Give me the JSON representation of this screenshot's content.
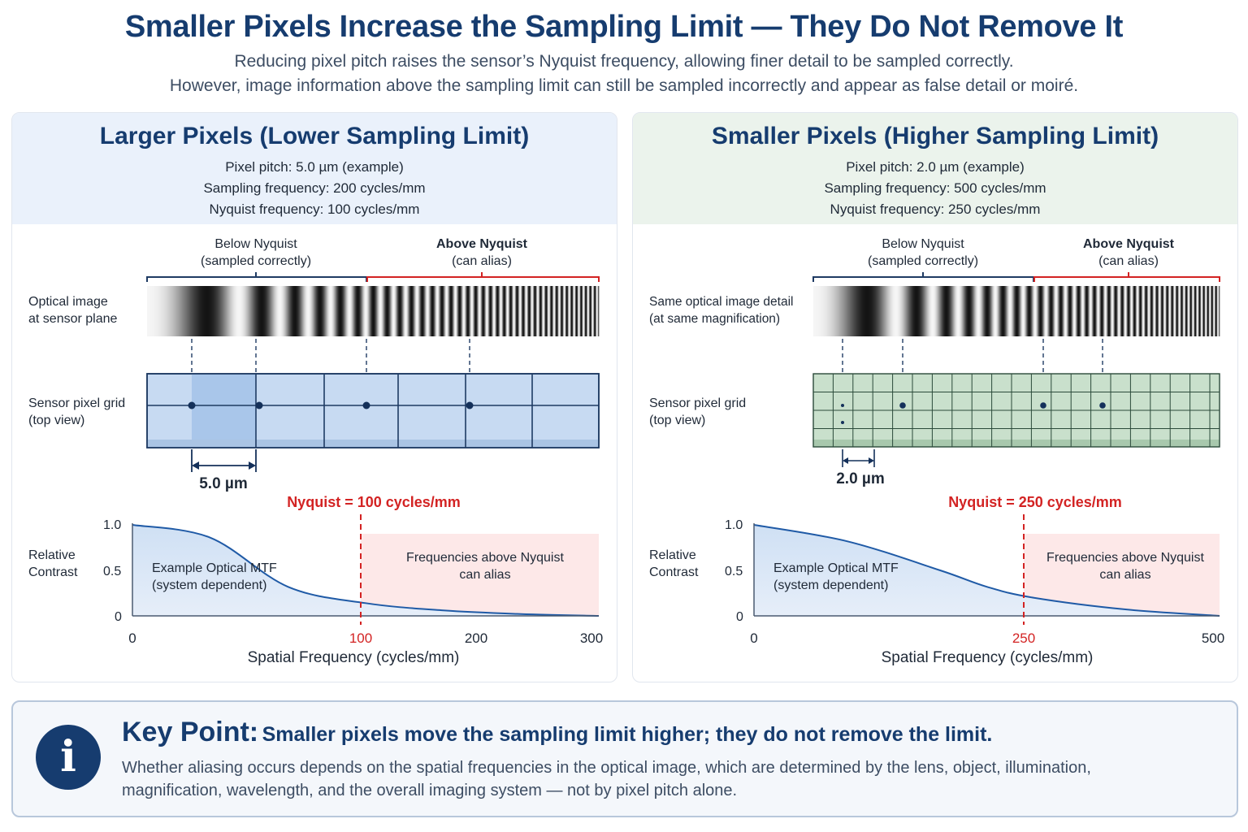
{
  "header": {
    "title": "Smaller Pixels Increase the Sampling Limit — They Do Not Remove It",
    "subtitle_line1": "Reducing pixel pitch raises the sensor’s Nyquist frequency, allowing finer detail to be sampled correctly.",
    "subtitle_line2": "However, image information above the sampling limit can still be sampled incorrectly and appear as false detail or moiré."
  },
  "left_panel": {
    "title": "Larger Pixels (Lower Sampling Limit)",
    "spec_pitch": "Pixel pitch: 5.0 µm (example)",
    "spec_sampling": "Sampling frequency: 200 cycles/mm",
    "spec_nyquist": "Nyquist frequency: 100 cycles/mm",
    "below_label_1": "Below Nyquist",
    "below_label_2": "(sampled correctly)",
    "above_label_1": "Above Nyquist",
    "above_label_2": "(can alias)",
    "optical_label_1": "Optical image",
    "optical_label_2": "at sensor plane",
    "grid_label_1": "Sensor pixel grid",
    "grid_label_2": "(top view)",
    "pitch_dim": "5.0 µm",
    "nyquist_marker": "Nyquist = 100 cycles/mm",
    "ylabel_1": "Relative",
    "ylabel_2": "Contrast",
    "mtf_label_1": "Example Optical MTF",
    "mtf_label_2": "(system dependent)",
    "alias_label_1": "Frequencies above Nyquist",
    "alias_label_2": "can alias",
    "xlabel": "Spatial Frequency (cycles/mm)",
    "yticks": [
      "1.0",
      "0.5",
      "0"
    ],
    "xticks": [
      "0",
      "100",
      "200",
      "300"
    ]
  },
  "right_panel": {
    "title": "Smaller Pixels (Higher Sampling Limit)",
    "spec_pitch": "Pixel pitch: 2.0 µm (example)",
    "spec_sampling": "Sampling frequency: 500 cycles/mm",
    "spec_nyquist": "Nyquist frequency: 250 cycles/mm",
    "below_label_1": "Below Nyquist",
    "below_label_2": "(sampled correctly)",
    "above_label_1": "Above Nyquist",
    "above_label_2": "(can alias)",
    "optical_label_1": "Same optical image detail",
    "optical_label_2": "(at same magnification)",
    "grid_label_1": "Sensor pixel grid",
    "grid_label_2": "(top view)",
    "pitch_dim": "2.0 µm",
    "nyquist_marker": "Nyquist = 250 cycles/mm",
    "ylabel_1": "Relative",
    "ylabel_2": "Contrast",
    "mtf_label_1": "Example Optical MTF",
    "mtf_label_2": "(system dependent)",
    "alias_label_1": "Frequencies above Nyquist",
    "alias_label_2": "can alias",
    "xlabel": "Spatial Frequency (cycles/mm)",
    "yticks": [
      "1.0",
      "0.5",
      "0"
    ],
    "xticks": [
      "0",
      "250",
      "500"
    ]
  },
  "key_point": {
    "icon": "info-icon",
    "icon_glyph": "i",
    "label": "Key Point:",
    "headline": "Smaller pixels move the sampling limit higher; they do not remove the limit.",
    "body_line1": "Whether aliasing occurs depends on the spatial frequencies in the optical image, which are determined by the lens, object, illumination,",
    "body_line2": "magnification, wavelength, and the overall imaging system — not by pixel pitch alone."
  },
  "colors": {
    "title": "#163c6f",
    "left_header_bg": "#eaf1fb",
    "right_header_bg": "#ebf3ec",
    "left_grid_fill": "#c7daf2",
    "right_grid_fill": "#c9e0cc",
    "mtf_line": "#1f5aa6",
    "nyquist_red": "#d32323",
    "alias_fill": "#fde8e8"
  },
  "chart_data": [
    {
      "type": "area",
      "series": [
        {
          "name": "Example Optical MTF",
          "x": [
            0,
            50,
            100,
            150,
            200,
            250,
            300
          ],
          "values": [
            1.0,
            0.86,
            0.32,
            0.14,
            0.06,
            0.02,
            0.0
          ]
        }
      ],
      "xlabel": "Spatial Frequency (cycles/mm)",
      "ylabel": "Relative Contrast",
      "xlim": [
        0,
        300
      ],
      "ylim": [
        0,
        1.0
      ],
      "nyquist": 100
    },
    {
      "type": "area",
      "series": [
        {
          "name": "Example Optical MTF",
          "x": [
            0,
            100,
            200,
            250,
            300,
            400,
            500
          ],
          "values": [
            1.0,
            0.82,
            0.5,
            0.32,
            0.2,
            0.07,
            0.0
          ]
        }
      ],
      "xlabel": "Spatial Frequency (cycles/mm)",
      "ylabel": "Relative Contrast",
      "xlim": [
        0,
        500
      ],
      "ylim": [
        0,
        1.0
      ],
      "nyquist": 250
    }
  ]
}
